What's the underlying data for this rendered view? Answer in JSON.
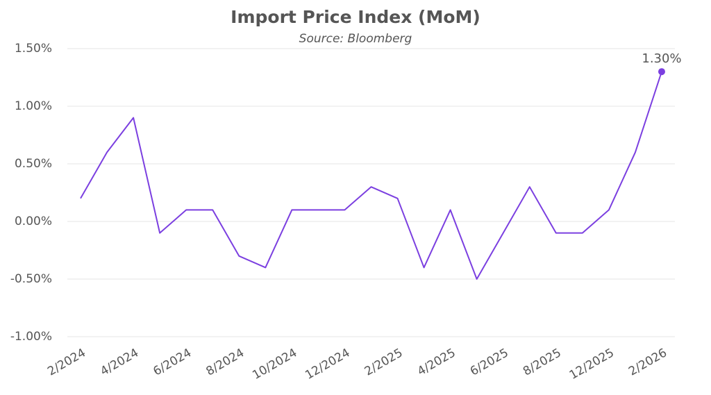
{
  "chart_data": {
    "type": "line",
    "title": "Import Price Index (MoM)",
    "subtitle": "Source: Bloomberg",
    "categories": [
      "2/2024",
      null,
      "4/2024",
      null,
      "6/2024",
      null,
      "8/2024",
      null,
      "10/2024",
      null,
      "12/2024",
      null,
      "2/2025",
      null,
      "4/2025",
      null,
      "6/2025",
      null,
      "8/2025",
      null,
      "12/2025",
      null,
      "2/2026"
    ],
    "series": [
      {
        "name": "Import Price Index (MoM)",
        "color": "#7b3fe0",
        "values": [
          0.2,
          0.6,
          0.9,
          -0.1,
          0.1,
          0.1,
          -0.3,
          -0.4,
          0.1,
          0.1,
          0.1,
          0.3,
          0.2,
          -0.4,
          0.1,
          -0.5,
          -0.1,
          0.3,
          -0.1,
          -0.1,
          0.1,
          0.6,
          1.3
        ],
        "value_labels": [
          null,
          null,
          null,
          null,
          null,
          null,
          null,
          null,
          null,
          null,
          null,
          null,
          null,
          null,
          null,
          null,
          null,
          null,
          null,
          null,
          null,
          null,
          "1.30%"
        ]
      }
    ],
    "ylim": [
      -1.0,
      1.5
    ],
    "yticks": [
      {
        "value": -1.0,
        "label": "-1.00%"
      },
      {
        "value": -0.5,
        "label": "-0.50%"
      },
      {
        "value": 0,
        "label": "0.00%"
      },
      {
        "value": 0.5,
        "label": "0.50%"
      },
      {
        "value": 1.0,
        "label": "1.00%"
      },
      {
        "value": 1.5,
        "label": "1.50%"
      }
    ],
    "grid": true
  }
}
